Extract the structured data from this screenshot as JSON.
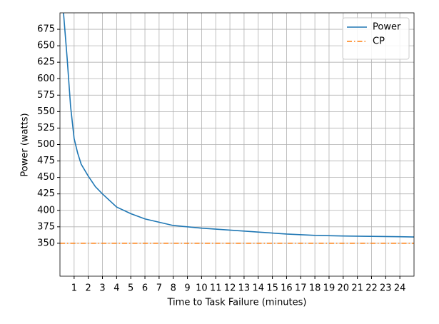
{
  "chart_data": {
    "type": "line",
    "xlabel": "Time to Task Failure (minutes)",
    "ylabel": "Power (watts)",
    "xlim": [
      0,
      25
    ],
    "ylim": [
      300,
      700
    ],
    "xticks": [
      1,
      2,
      3,
      4,
      5,
      6,
      7,
      8,
      9,
      10,
      11,
      12,
      13,
      14,
      15,
      16,
      17,
      18,
      19,
      20,
      21,
      22,
      23,
      24
    ],
    "yticks": [
      350,
      375,
      400,
      425,
      450,
      475,
      500,
      525,
      550,
      575,
      600,
      625,
      650,
      675
    ],
    "grid": true,
    "legend": "upper-right",
    "series": [
      {
        "name": "Power",
        "color": "#1f77b4",
        "dash": "solid",
        "x": [
          0.25,
          0.5,
          0.75,
          1,
          1.25,
          1.5,
          2,
          2.5,
          3,
          4,
          5,
          6,
          7,
          8,
          9,
          10,
          12,
          14,
          16,
          18,
          20,
          22,
          24,
          25
        ],
        "values": [
          700,
          633,
          558,
          509,
          487,
          470,
          452,
          436,
          425,
          405,
          395,
          387,
          382,
          377,
          375,
          373,
          370,
          367,
          364,
          362,
          361,
          360.5,
          360,
          359.5
        ]
      },
      {
        "name": "CP",
        "color": "#ff7f0e",
        "dash": "dashdot",
        "x": [
          0,
          25
        ],
        "values": [
          350,
          350
        ]
      }
    ]
  }
}
